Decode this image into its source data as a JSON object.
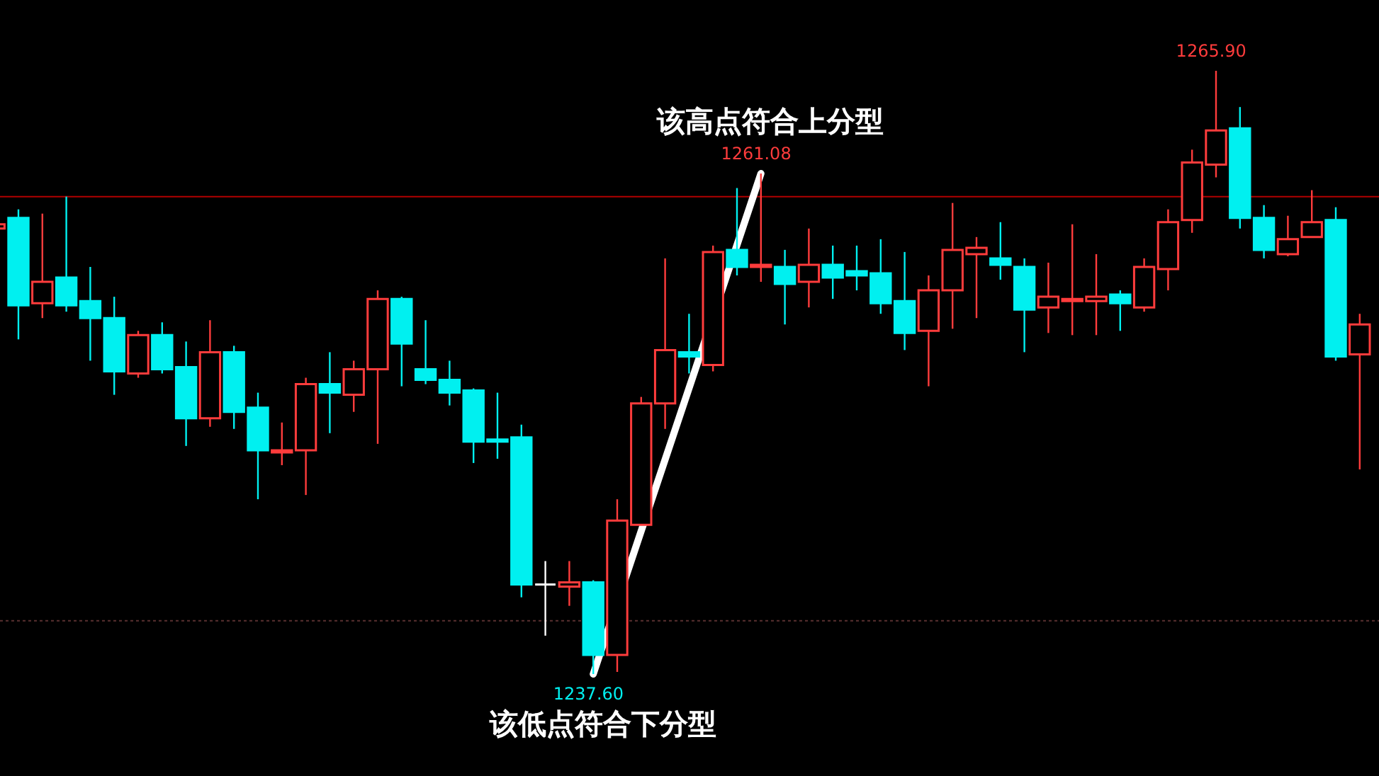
{
  "chart_data": {
    "type": "candlestick",
    "categories": [
      null,
      null,
      null,
      null,
      null,
      null,
      null,
      null,
      null,
      null,
      null,
      null,
      null,
      null,
      null,
      null,
      null,
      null,
      null,
      null,
      null,
      null,
      null,
      null,
      null,
      null,
      null,
      null,
      null,
      null,
      null,
      null,
      null,
      null,
      null,
      null,
      null,
      null,
      null,
      null,
      null,
      null,
      null,
      null,
      null,
      null,
      null,
      null,
      null,
      null,
      null,
      null,
      null,
      null,
      null,
      null,
      null,
      null
    ],
    "ohlc": [
      [
        1258.5,
        1258.7,
        1258.5,
        1258.7
      ],
      [
        1259.0,
        1259.4,
        1253.3,
        1254.9
      ],
      [
        1255.0,
        1259.2,
        1254.3,
        1256.0
      ],
      [
        1256.2,
        1260.0,
        1254.6,
        1254.9
      ],
      [
        1255.1,
        1256.7,
        1252.3,
        1254.3
      ],
      [
        1254.3,
        1255.3,
        1250.7,
        1251.8
      ],
      [
        1251.7,
        1253.7,
        1251.5,
        1253.5
      ],
      [
        1253.5,
        1254.1,
        1251.7,
        1251.9
      ],
      [
        1252.0,
        1253.2,
        1248.3,
        1249.6
      ],
      [
        1249.6,
        1254.2,
        1249.2,
        1252.7
      ],
      [
        1252.7,
        1253.0,
        1249.1,
        1249.9
      ],
      [
        1250.1,
        1250.8,
        1245.8,
        1248.1
      ],
      [
        1248.0,
        1249.4,
        1247.4,
        1248.1
      ],
      [
        1248.1,
        1251.5,
        1246.0,
        1251.2
      ],
      [
        1251.2,
        1252.7,
        1248.9,
        1250.8
      ],
      [
        1250.7,
        1252.3,
        1249.9,
        1251.9
      ],
      [
        1251.9,
        1255.6,
        1248.4,
        1255.2
      ],
      [
        1255.2,
        1255.3,
        1251.1,
        1253.1
      ],
      [
        1251.9,
        1254.2,
        1251.2,
        1251.4
      ],
      [
        1251.4,
        1252.3,
        1250.2,
        1250.8
      ],
      [
        1250.9,
        1251.0,
        1247.5,
        1248.5
      ],
      [
        1248.6,
        1250.8,
        1247.7,
        1248.5
      ],
      [
        1248.7,
        1249.3,
        1241.2,
        1241.8
      ],
      [
        1241.8,
        1242.9,
        1239.4,
        1241.8
      ],
      [
        1241.7,
        1242.9,
        1240.8,
        1241.9
      ],
      [
        1241.9,
        1242.0,
        1237.6,
        1238.5
      ],
      [
        1238.5,
        1245.8,
        1237.7,
        1244.8
      ],
      [
        1244.6,
        1250.6,
        1244.6,
        1250.3
      ],
      [
        1250.3,
        1257.1,
        1249.1,
        1252.8
      ],
      [
        1252.7,
        1254.5,
        1251.7,
        1252.5
      ],
      [
        1252.1,
        1257.7,
        1251.8,
        1257.4
      ],
      [
        1257.5,
        1260.4,
        1256.3,
        1256.7
      ],
      [
        1256.7,
        1261.08,
        1256.0,
        1256.8
      ],
      [
        1256.7,
        1257.5,
        1254.0,
        1255.9
      ],
      [
        1256.0,
        1258.5,
        1254.8,
        1256.8
      ],
      [
        1256.8,
        1257.7,
        1255.2,
        1256.2
      ],
      [
        1256.5,
        1257.7,
        1255.6,
        1256.3
      ],
      [
        1256.4,
        1258.0,
        1254.5,
        1255.0
      ],
      [
        1255.1,
        1257.4,
        1252.8,
        1253.6
      ],
      [
        1253.7,
        1256.3,
        1251.1,
        1255.6
      ],
      [
        1255.6,
        1259.7,
        1253.8,
        1257.5
      ],
      [
        1257.3,
        1258.1,
        1254.3,
        1257.6
      ],
      [
        1257.1,
        1258.8,
        1256.1,
        1256.8
      ],
      [
        1256.7,
        1257.1,
        1252.7,
        1254.7
      ],
      [
        1254.8,
        1256.9,
        1253.6,
        1255.3
      ],
      [
        1255.1,
        1258.7,
        1253.5,
        1255.2
      ],
      [
        1255.1,
        1257.3,
        1253.5,
        1255.3
      ],
      [
        1255.4,
        1255.6,
        1253.7,
        1255.0
      ],
      [
        1254.8,
        1257.1,
        1254.6,
        1256.7
      ],
      [
        1256.6,
        1259.4,
        1255.6,
        1258.8
      ],
      [
        1258.9,
        1262.2,
        1258.3,
        1261.6
      ],
      [
        1261.5,
        1265.9,
        1260.9,
        1263.1
      ],
      [
        1263.2,
        1264.2,
        1258.5,
        1259.0
      ],
      [
        1259.0,
        1259.6,
        1257.1,
        1257.5
      ],
      [
        1257.3,
        1259.1,
        1257.2,
        1258.0
      ],
      [
        1258.1,
        1260.3,
        1258.1,
        1258.8
      ],
      [
        1258.9,
        1259.5,
        1252.3,
        1252.5
      ],
      [
        1252.6,
        1254.5,
        1247.2,
        1254.0
      ]
    ],
    "colors": [
      "#ff3c3c",
      "#00f0f0",
      "#ff3c3c",
      "#00f0f0",
      "#00f0f0",
      "#00f0f0",
      "#ff3c3c",
      "#00f0f0",
      "#00f0f0",
      "#ff3c3c",
      "#00f0f0",
      "#00f0f0",
      "#ff3c3c",
      "#ff3c3c",
      "#00f0f0",
      "#ff3c3c",
      "#ff3c3c",
      "#00f0f0",
      "#00f0f0",
      "#00f0f0",
      "#00f0f0",
      "#00f0f0",
      "#00f0f0",
      "#ffffff",
      "#ff3c3c",
      "#00f0f0",
      "#ff3c3c",
      "#ff3c3c",
      "#ff3c3c",
      "#00f0f0",
      "#ff3c3c",
      "#00f0f0",
      "#ff3c3c",
      "#00f0f0",
      "#ff3c3c",
      "#00f0f0",
      "#00f0f0",
      "#00f0f0",
      "#00f0f0",
      "#ff3c3c",
      "#ff3c3c",
      "#ff3c3c",
      "#00f0f0",
      "#00f0f0",
      "#ff3c3c",
      "#ff3c3c",
      "#ff3c3c",
      "#00f0f0",
      "#ff3c3c",
      "#ff3c3c",
      "#ff3c3c",
      "#ff3c3c",
      "#00f0f0",
      "#00f0f0",
      "#ff3c3c",
      "#ff3c3c",
      "#00f0f0",
      "#ff3c3c"
    ],
    "series": [
      {
        "type": "line",
        "color": "#ffffff",
        "values": [
          null,
          null,
          null,
          null,
          null,
          null,
          null,
          null,
          null,
          null,
          null,
          null,
          null,
          null,
          null,
          null,
          null,
          null,
          null,
          null,
          null,
          null,
          null,
          null,
          null,
          1237.6,
          null,
          null,
          null,
          null,
          null,
          null,
          1261.08,
          null,
          null,
          null,
          null,
          null,
          null,
          null,
          null,
          null,
          null,
          null,
          null,
          null,
          null,
          null,
          null,
          null,
          null,
          null,
          null,
          null,
          null,
          null,
          null,
          null
        ]
      }
    ],
    "ref_lines": [
      {
        "axis": "y",
        "value": 1260.0,
        "color": "#b00000",
        "line_style": "solid"
      },
      {
        "axis": "y",
        "value": 1240.1,
        "color": "#5a3030",
        "line_style": "dotted"
      }
    ],
    "annotations": [
      {
        "text": "1265.90",
        "y": 1265.9
      },
      {
        "text": "1261.08",
        "y": 1261.08
      },
      "该高点符合上分型",
      {
        "text": "1237.60",
        "y": 1237.6
      },
      "该低点符合下分型"
    ],
    "grid": false
  }
}
